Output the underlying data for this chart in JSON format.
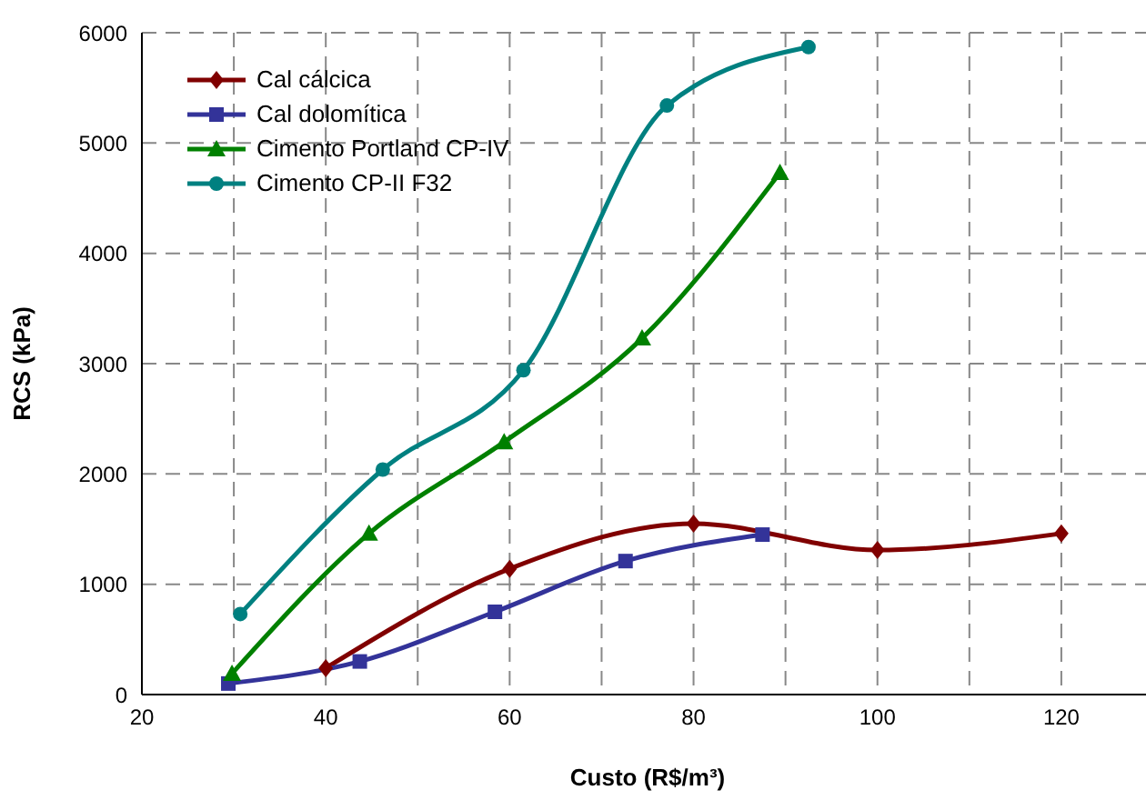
{
  "chart_data": {
    "type": "line",
    "xlabel": "Custo (R$/m³)",
    "ylabel": "RCS (kPa)",
    "xlim": [
      20,
      130
    ],
    "xticks": [
      20,
      {
        "value": 30,
        "label": null
      },
      40,
      {
        "value": 50,
        "label": null
      },
      60,
      {
        "value": 70,
        "label": null
      },
      80,
      {
        "value": 90,
        "label": null
      },
      100,
      {
        "value": 110,
        "label": null
      },
      120
    ],
    "ylim": [
      0,
      6000
    ],
    "yticks": [
      0,
      1000,
      2000,
      3000,
      4000,
      5000,
      6000
    ],
    "grid": true,
    "legend": "top left",
    "line_style": "solid",
    "series": [
      {
        "name": "Cal cálcica",
        "color": "#800000",
        "marker": "diamond",
        "x": [
          40,
          60,
          80,
          100,
          120
        ],
        "values": [
          240,
          1140,
          1550,
          1310,
          1460
        ]
      },
      {
        "name": "Cal dolomítica",
        "color": "#333399",
        "marker": "square",
        "x": [
          29.4,
          43.7,
          58.4,
          72.6,
          87.5
        ],
        "values": [
          100,
          300,
          750,
          1210,
          1450
        ]
      },
      {
        "name": "Cimento Portland CP-IV",
        "color": "#008000",
        "marker": "triangle",
        "x": [
          29.8,
          44.7,
          59.4,
          74.4,
          89.4
        ],
        "values": [
          190,
          1460,
          2290,
          3230,
          4730
        ]
      },
      {
        "name": "Cimento CP-II F32",
        "color": "#008080",
        "marker": "circle",
        "x": [
          30.7,
          46.2,
          61.5,
          77.1,
          92.5
        ],
        "values": [
          730,
          2040,
          2940,
          5340,
          5870
        ]
      }
    ]
  }
}
